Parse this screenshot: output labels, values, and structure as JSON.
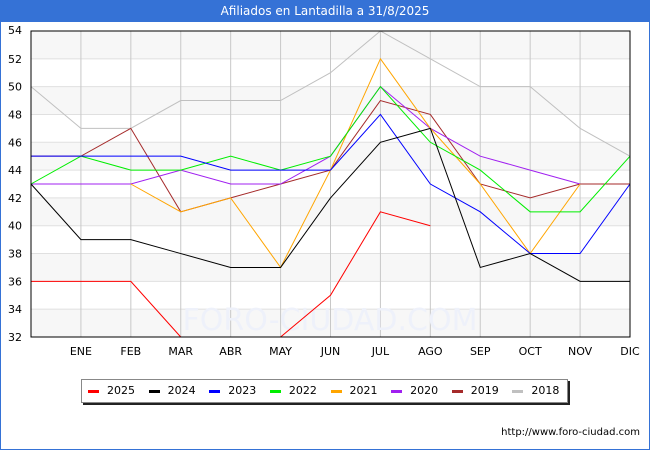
{
  "chart_data": {
    "type": "line",
    "title": "Afiliados en Lantadilla a 31/8/2025",
    "xlabel": "",
    "ylabel": "",
    "categories": [
      "",
      "ENE",
      "FEB",
      "MAR",
      "ABR",
      "MAY",
      "JUN",
      "JUL",
      "AGO",
      "SEP",
      "OCT",
      "NOV",
      "DIC"
    ],
    "ylim": [
      32,
      54
    ],
    "yticks": [
      32,
      34,
      36,
      38,
      40,
      42,
      44,
      46,
      48,
      50,
      52,
      54
    ],
    "grid": true,
    "legend_position": "bottom",
    "series": [
      {
        "name": "2025",
        "color": "#ff0000",
        "values": [
          36,
          36,
          36,
          32,
          null,
          32,
          35,
          41,
          40,
          null,
          null,
          null,
          null
        ]
      },
      {
        "name": "2024",
        "color": "#000000",
        "values": [
          43,
          39,
          39,
          38,
          37,
          37,
          42,
          46,
          47,
          37,
          38,
          36,
          36
        ]
      },
      {
        "name": "2023",
        "color": "#0000ff",
        "values": [
          45,
          45,
          45,
          45,
          44,
          44,
          44,
          48,
          43,
          41,
          38,
          38,
          43
        ]
      },
      {
        "name": "2022",
        "color": "#00ee00",
        "values": [
          43,
          45,
          44,
          44,
          45,
          44,
          45,
          50,
          46,
          44,
          41,
          41,
          45
        ]
      },
      {
        "name": "2021",
        "color": "#ffa500",
        "values": [
          null,
          null,
          43,
          41,
          42,
          37,
          44,
          52,
          47,
          43,
          38,
          43,
          null
        ]
      },
      {
        "name": "2020",
        "color": "#a020f0",
        "values": [
          43,
          43,
          43,
          44,
          43,
          43,
          45,
          50,
          47,
          45,
          44,
          43,
          null
        ]
      },
      {
        "name": "2019",
        "color": "#a52a2a",
        "values": [
          45,
          45,
          47,
          41,
          42,
          43,
          44,
          49,
          48,
          43,
          42,
          43,
          43
        ]
      },
      {
        "name": "2018",
        "color": "#c0c0c0",
        "values": [
          50,
          47,
          47,
          49,
          49,
          49,
          51,
          54,
          52,
          50,
          50,
          47,
          45
        ]
      }
    ]
  },
  "footer": {
    "url": "http://www.foro-ciudad.com"
  },
  "watermark": "FORO-CIUDAD.COM"
}
